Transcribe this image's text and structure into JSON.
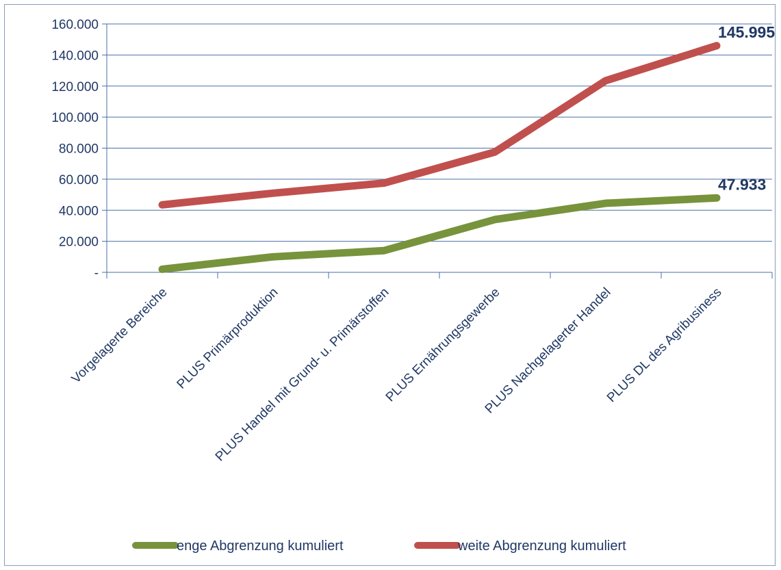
{
  "chart_data": {
    "type": "line",
    "categories": [
      "Vorgelagerte Bereiche",
      "PLUS Primärproduktion",
      "PLUS Handel mit Grund- u. Primärstoffen",
      "PLUS Ernährungsgewerbe",
      "PLUS Nachgelagerter Handel",
      "PLUS DL des Agribusiness"
    ],
    "series": [
      {
        "name": "enge Abgrenzung kumuliert",
        "values": [
          2000,
          10000,
          14000,
          34000,
          44500,
          47933
        ],
        "color": "#77933c",
        "last_label": "47.933"
      },
      {
        "name": "weite Abgrenzung kumuliert",
        "values": [
          43500,
          51000,
          57500,
          77500,
          123500,
          145995
        ],
        "color": "#c0504d",
        "last_label": "145.995"
      }
    ],
    "y_ticks": [
      {
        "value": 0,
        "label": "-"
      },
      {
        "value": 20000,
        "label": "20.000"
      },
      {
        "value": 40000,
        "label": "40.000"
      },
      {
        "value": 60000,
        "label": "60.000"
      },
      {
        "value": 80000,
        "label": "80.000"
      },
      {
        "value": 100000,
        "label": "100.000"
      },
      {
        "value": 120000,
        "label": "120.000"
      },
      {
        "value": 140000,
        "label": "140.000"
      },
      {
        "value": 160000,
        "label": "160.000"
      }
    ],
    "ylim": [
      0,
      160000
    ],
    "grid": true,
    "legend_position": "bottom"
  }
}
